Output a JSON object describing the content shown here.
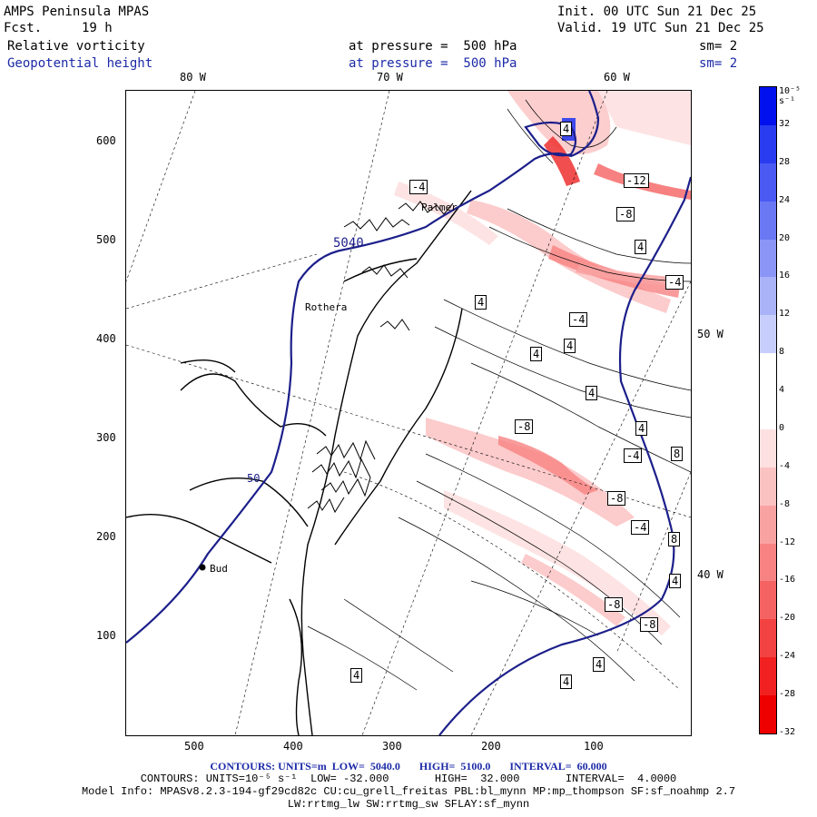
{
  "header": {
    "title": "AMPS Peninsula MPAS",
    "forecast_label": "Fcst.",
    "forecast_value": "19 h",
    "init": "Init. 00 UTC Sun 21 Dec 25",
    "valid": "Valid. 19 UTC Sun 21 Dec 25",
    "field1_name": "Relative vorticity",
    "field1_level": "at pressure =  500 hPa",
    "field1_sm": "sm= 2",
    "field2_name": "Geopotential height",
    "field2_level": "at pressure =  500 hPa",
    "field2_sm": "sm= 2"
  },
  "map": {
    "lon_labels_top": [
      "80 W",
      "70 W",
      "60 W"
    ],
    "lon_labels_right": [
      "50 W",
      "40 W"
    ],
    "y_ticks": [
      "100",
      "200",
      "300",
      "400",
      "500",
      "600"
    ],
    "x_ticks": [
      "500",
      "400",
      "300",
      "200",
      "100"
    ],
    "place_labels": [
      "Palmer",
      "Rothera",
      "Bud"
    ],
    "height_contour_label": "5040",
    "height_contour_label2": "50",
    "vorticity_labels": [
      "4",
      "-4",
      "-12",
      "-8",
      "4",
      "-4",
      "4",
      "-4",
      "4",
      "4",
      "4",
      "-8",
      "-4",
      "8",
      "4",
      "-8",
      "-4",
      "8",
      "-8",
      "-8",
      "4",
      "4",
      "4",
      "4"
    ]
  },
  "colorbar": {
    "unit_label": "10⁻⁵ s⁻¹",
    "labels": [
      "32",
      "28",
      "24",
      "20",
      "16",
      "12",
      "8",
      "4",
      "0",
      "-4",
      "-8",
      "-12",
      "-16",
      "-20",
      "-24",
      "-28",
      "-32"
    ],
    "colors": [
      "#0011ee",
      "#2a3cf0",
      "#4a5af2",
      "#6a78f4",
      "#8a95f6",
      "#aab2f8",
      "#c8cefb",
      "#ffffff",
      "#ffffff",
      "#fde0e0",
      "#fbc2c2",
      "#f9a2a2",
      "#f78282",
      "#f56262",
      "#f34242",
      "#f12121",
      "#ee0000"
    ]
  },
  "footer": {
    "line1": "CONTOURS: UNITS=m  LOW=  5040.0       HIGH=  5100.0       INTERVAL=  60.000",
    "line2": "CONTOURS: UNITS=10⁻⁵ s⁻¹  LOW= -32.000       HIGH=  32.000       INTERVAL=  4.0000",
    "line3": "Model Info: MPASv8.2.3-194-gf29cd82c CU:cu_grell_freitas PBL:bl_mynn MP:mp_thompson SF:sf_noahmp 2.7",
    "line4": "LW:rrtmg_lw SW:rrtmg_sw SFLAY:sf_mynn"
  }
}
